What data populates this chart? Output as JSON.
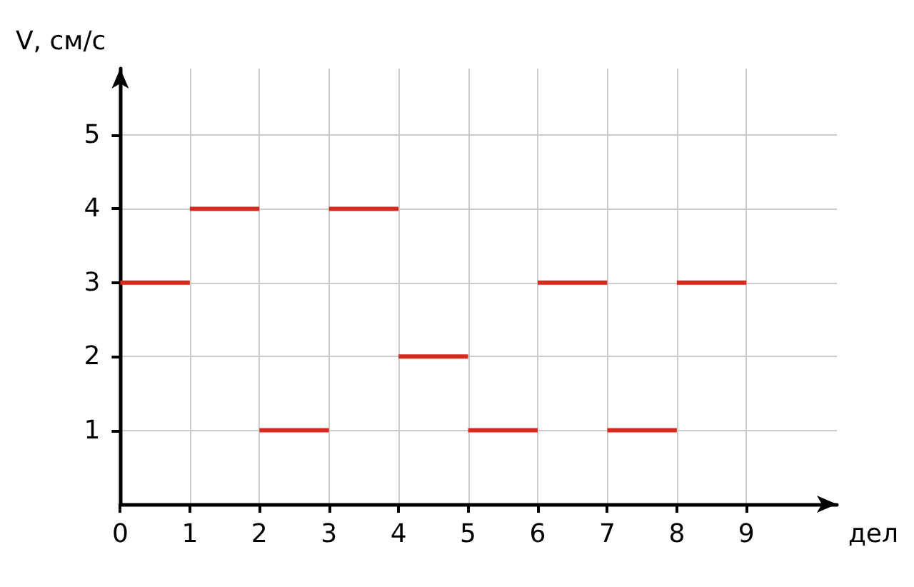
{
  "chart_data": {
    "type": "line",
    "xlabel": "дел",
    "ylabel": "V, см/с",
    "series": [
      {
        "color": "#d42a1f",
        "x": [
          0,
          1
        ],
        "values": [
          3,
          3
        ]
      },
      {
        "color": "#d42a1f",
        "x": [
          1,
          2
        ],
        "values": [
          4,
          4
        ]
      },
      {
        "color": "#d42a1f",
        "x": [
          2,
          3
        ],
        "values": [
          1,
          1
        ]
      },
      {
        "color": "#d42a1f",
        "x": [
          3,
          4
        ],
        "values": [
          4,
          4
        ]
      },
      {
        "color": "#d42a1f",
        "x": [
          4,
          5
        ],
        "values": [
          2,
          2
        ]
      },
      {
        "color": "#d42a1f",
        "x": [
          5,
          6
        ],
        "values": [
          1,
          1
        ]
      },
      {
        "color": "#d42a1f",
        "x": [
          6,
          7
        ],
        "values": [
          3,
          3
        ]
      },
      {
        "color": "#d42a1f",
        "x": [
          7,
          8
        ],
        "values": [
          1,
          1
        ]
      },
      {
        "color": "#d42a1f",
        "x": [
          8,
          9
        ],
        "values": [
          3,
          3
        ]
      }
    ],
    "xlim": [
      0,
      10.3
    ],
    "ylim": [
      0,
      5.9
    ],
    "xticks": [
      0,
      1,
      2,
      3,
      4,
      5,
      6,
      7,
      8,
      9
    ],
    "yticks": [
      1,
      2,
      3,
      4,
      5
    ],
    "grid": true,
    "marker": "none",
    "line_style": "solid"
  }
}
